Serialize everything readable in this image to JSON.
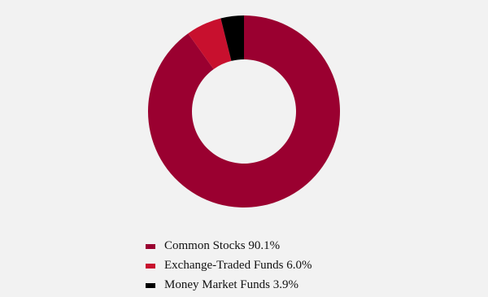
{
  "chart_data": {
    "type": "donut",
    "categories": [
      "Common Stocks",
      "Exchange-Traded Funds",
      "Money Market Funds"
    ],
    "values": [
      90.1,
      6.0,
      3.9
    ],
    "value_labels": [
      "90.1%",
      "6.0%",
      "3.9%"
    ],
    "colors": [
      "#9a0030",
      "#c8102e",
      "#000000"
    ]
  }
}
